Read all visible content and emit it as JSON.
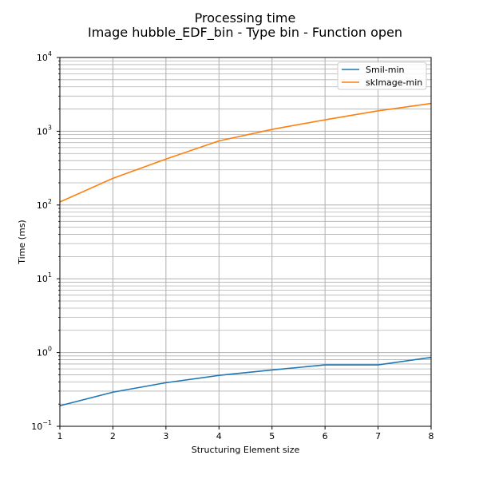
{
  "chart_data": {
    "type": "line",
    "title": "Processing time",
    "subtitle": "Image hubble_EDF_bin - Type bin - Function open",
    "xlabel": "Structuring Element size",
    "ylabel": "Time (ms)",
    "xlim": [
      1,
      8
    ],
    "ylim": [
      0.1,
      10000
    ],
    "yscale": "log",
    "grid": true,
    "legend_position": "top-right",
    "x": [
      1,
      2,
      3,
      4,
      5,
      6,
      7,
      8
    ],
    "x_ticks": [
      "1",
      "2",
      "3",
      "4",
      "5",
      "6",
      "7",
      "8"
    ],
    "y_ticks": [
      {
        "base": "10",
        "exp": "−1",
        "value": 0.1
      },
      {
        "base": "10",
        "exp": "0",
        "value": 1
      },
      {
        "base": "10",
        "exp": "1",
        "value": 10
      },
      {
        "base": "10",
        "exp": "2",
        "value": 100
      },
      {
        "base": "10",
        "exp": "3",
        "value": 1000
      },
      {
        "base": "10",
        "exp": "4",
        "value": 10000
      }
    ],
    "series": [
      {
        "name": "Smil-min",
        "color": "#1f77b4",
        "values": [
          0.19,
          0.29,
          0.39,
          0.49,
          0.58,
          0.68,
          0.68,
          0.86
        ]
      },
      {
        "name": "skImage-min",
        "color": "#ff7f0e",
        "values": [
          110,
          230,
          420,
          740,
          1060,
          1430,
          1890,
          2380
        ]
      }
    ]
  }
}
